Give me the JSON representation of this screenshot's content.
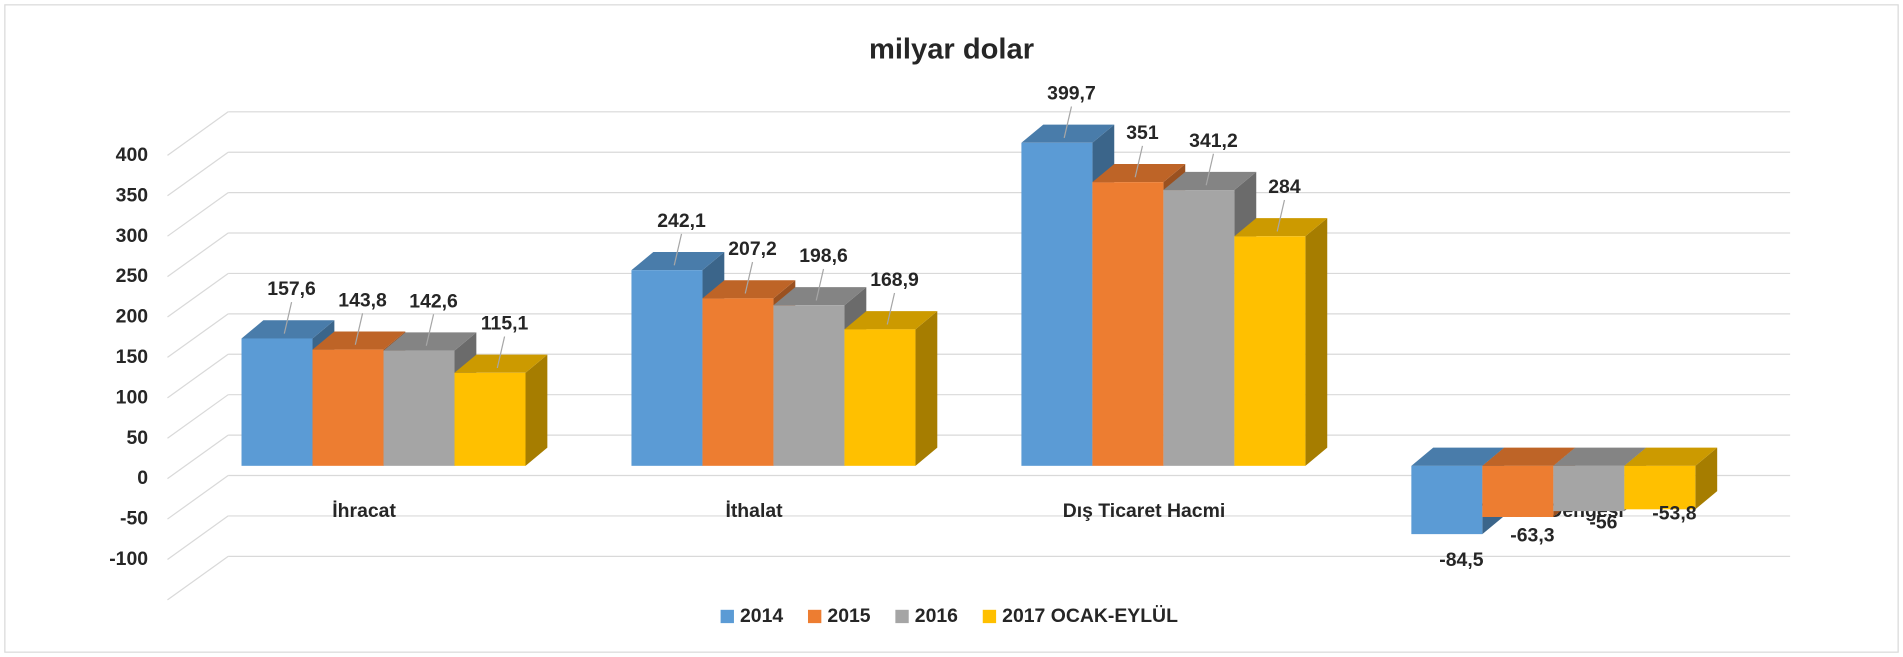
{
  "chart_data": {
    "type": "bar3d",
    "title": "milyar dolar",
    "categories": [
      "İhracat",
      "İthalat",
      "Dış Ticaret Hacmi",
      "Dış Ticaret Dengesi"
    ],
    "series": [
      {
        "name": "2014",
        "color": "#5b9bd5",
        "values": [
          157.6,
          242.1,
          399.7,
          -84.5
        ],
        "value_labels": [
          "157,6",
          "242,1",
          "399,7",
          "-84,5"
        ]
      },
      {
        "name": "2015",
        "color": "#ed7d31",
        "values": [
          143.8,
          207.2,
          351,
          -63.3
        ],
        "value_labels": [
          "143,8",
          "207,2",
          "351",
          "-63,3"
        ]
      },
      {
        "name": "2016",
        "color": "#a5a5a5",
        "values": [
          142.6,
          198.6,
          341.2,
          -56
        ],
        "value_labels": [
          "142,6",
          "198,6",
          "341,2",
          "-56"
        ]
      },
      {
        "name": "2017 OCAK-EYLÜL",
        "color": "#ffc000",
        "values": [
          115.1,
          168.9,
          284,
          -53.8
        ],
        "value_labels": [
          "115,1",
          "168,9",
          "284",
          "-53,8"
        ]
      }
    ],
    "ylim": [
      -100,
      450
    ],
    "yticks": [
      -100,
      -50,
      0,
      50,
      100,
      150,
      200,
      250,
      300,
      350,
      400
    ],
    "grid": true,
    "legend": "bottom"
  }
}
